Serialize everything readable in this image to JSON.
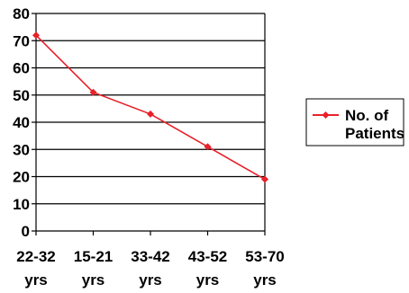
{
  "chart_data": {
    "type": "line",
    "categories": [
      [
        "22-32",
        "yrs"
      ],
      [
        "15-21",
        "yrs"
      ],
      [
        "33-42",
        "yrs"
      ],
      [
        "43-52",
        "yrs"
      ],
      [
        "53-70",
        "yrs"
      ]
    ],
    "series": [
      {
        "name": [
          "No. of",
          "Patients"
        ],
        "values": [
          72,
          51,
          43,
          31,
          19
        ],
        "color": "#e8212a",
        "marker": "diamond"
      }
    ],
    "ylim": [
      0,
      80
    ],
    "yticks": [
      0,
      10,
      20,
      30,
      40,
      50,
      60,
      70,
      80
    ],
    "grid": true,
    "legend_position": "right"
  }
}
